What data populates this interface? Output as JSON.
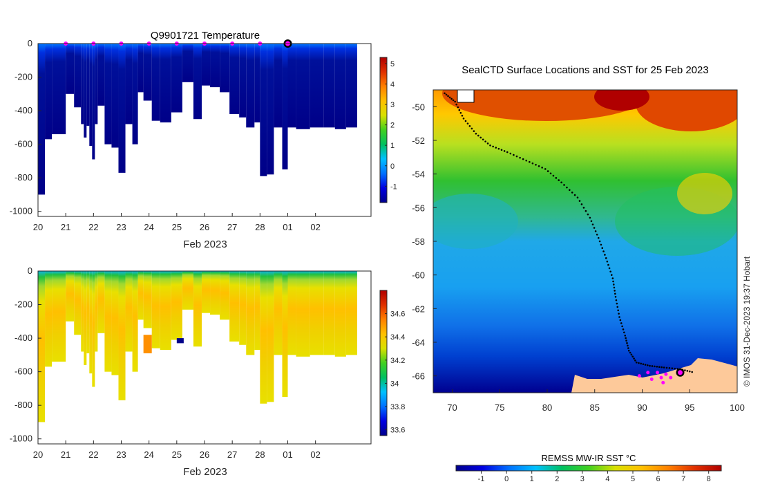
{
  "chart_data": [
    {
      "type": "heatmap",
      "title": "Q9901721  Temperature",
      "xlabel": "Feb 2023",
      "ylabel": "",
      "x_ticks": [
        "20",
        "21",
        "22",
        "23",
        "24",
        "25",
        "26",
        "27",
        "28",
        "01",
        "02"
      ],
      "y_ticks": [
        "0",
        "-200",
        "-400",
        "-600",
        "-800",
        "-1000"
      ],
      "xlim": [
        20,
        32
      ],
      "ylim": [
        -1030,
        0
      ],
      "colorbar": {
        "ticks": [
          "5",
          "4",
          "3",
          "2",
          "1",
          "0",
          "-1"
        ],
        "range": [
          -1.8,
          5.3
        ],
        "colors": [
          "#00008b",
          "#0000e0",
          "#0070ff",
          "#00c0ff",
          "#00c060",
          "#40d020",
          "#d8e000",
          "#ffc000",
          "#ff8000",
          "#e03000",
          "#b00000"
        ]
      },
      "surface_markers_x": [
        21,
        22,
        23,
        24,
        25,
        26,
        27,
        28
      ],
      "current_marker_x": 29,
      "profiles": [
        {
          "x": 20.0,
          "w": 0.25,
          "depth": 900
        },
        {
          "x": 20.25,
          "w": 0.25,
          "depth": 570
        },
        {
          "x": 20.5,
          "w": 0.5,
          "depth": 540
        },
        {
          "x": 21.0,
          "w": 0.3,
          "depth": 300
        },
        {
          "x": 21.3,
          "w": 0.25,
          "depth": 380
        },
        {
          "x": 21.55,
          "w": 0.1,
          "depth": 480
        },
        {
          "x": 21.65,
          "w": 0.1,
          "depth": 560
        },
        {
          "x": 21.75,
          "w": 0.1,
          "depth": 490
        },
        {
          "x": 21.85,
          "w": 0.1,
          "depth": 610
        },
        {
          "x": 21.95,
          "w": 0.1,
          "depth": 690
        },
        {
          "x": 22.05,
          "w": 0.1,
          "depth": 480
        },
        {
          "x": 22.15,
          "w": 0.25,
          "depth": 370
        },
        {
          "x": 22.4,
          "w": 0.25,
          "depth": 600
        },
        {
          "x": 22.65,
          "w": 0.25,
          "depth": 620
        },
        {
          "x": 22.9,
          "w": 0.25,
          "depth": 770
        },
        {
          "x": 23.15,
          "w": 0.25,
          "depth": 480
        },
        {
          "x": 23.4,
          "w": 0.2,
          "depth": 600
        },
        {
          "x": 23.6,
          "w": 0.2,
          "depth": 290
        },
        {
          "x": 23.8,
          "w": 0.3,
          "depth": 340
        },
        {
          "x": 24.1,
          "w": 0.3,
          "depth": 460
        },
        {
          "x": 24.4,
          "w": 0.4,
          "depth": 470
        },
        {
          "x": 24.8,
          "w": 0.4,
          "depth": 410
        },
        {
          "x": 25.2,
          "w": 0.4,
          "depth": 230
        },
        {
          "x": 25.6,
          "w": 0.3,
          "depth": 450
        },
        {
          "x": 25.9,
          "w": 0.3,
          "depth": 250
        },
        {
          "x": 26.2,
          "w": 0.35,
          "depth": 260
        },
        {
          "x": 26.55,
          "w": 0.35,
          "depth": 290
        },
        {
          "x": 26.9,
          "w": 0.35,
          "depth": 420
        },
        {
          "x": 27.25,
          "w": 0.25,
          "depth": 440
        },
        {
          "x": 27.5,
          "w": 0.3,
          "depth": 500
        },
        {
          "x": 27.8,
          "w": 0.2,
          "depth": 470
        },
        {
          "x": 28.0,
          "w": 0.25,
          "depth": 790
        },
        {
          "x": 28.25,
          "w": 0.25,
          "depth": 780
        },
        {
          "x": 28.5,
          "w": 0.3,
          "depth": 500
        },
        {
          "x": 28.8,
          "w": 0.2,
          "depth": 750
        },
        {
          "x": 29.0,
          "w": 0.3,
          "depth": 500
        },
        {
          "x": 29.3,
          "w": 0.5,
          "depth": 510
        },
        {
          "x": 29.8,
          "w": 0.5,
          "depth": 500
        },
        {
          "x": 30.3,
          "w": 0.4,
          "depth": 500
        },
        {
          "x": 30.7,
          "w": 0.4,
          "depth": 510
        },
        {
          "x": 31.1,
          "w": 0.4,
          "depth": 500
        }
      ]
    },
    {
      "type": "heatmap",
      "title": "",
      "xlabel": "Feb 2023",
      "ylabel": "",
      "x_ticks": [
        "20",
        "21",
        "22",
        "23",
        "24",
        "25",
        "26",
        "27",
        "28",
        "01",
        "02"
      ],
      "y_ticks": [
        "0",
        "-200",
        "-400",
        "-600",
        "-800",
        "-1000"
      ],
      "xlim": [
        20,
        32
      ],
      "ylim": [
        -1030,
        0
      ],
      "colorbar": {
        "ticks": [
          "34.6",
          "34.4",
          "34.2",
          "34",
          "33.8",
          "33.6"
        ],
        "range": [
          33.55,
          34.8
        ],
        "colors": [
          "#00008b",
          "#0000e0",
          "#0070ff",
          "#00c0ff",
          "#00c060",
          "#40d020",
          "#d8e000",
          "#ffc000",
          "#ff8000",
          "#e03000",
          "#b00000"
        ]
      }
    },
    {
      "type": "heatmap",
      "title": "SealCTD Surface Locations and SST for 25 Feb 2023",
      "xlabel": "",
      "ylabel": "",
      "x_ticks": [
        "70",
        "75",
        "80",
        "85",
        "90",
        "95",
        "100"
      ],
      "y_ticks": [
        "-50",
        "-52",
        "-54",
        "-56",
        "-58",
        "-60",
        "-62",
        "-64",
        "-66"
      ],
      "xlim": [
        68,
        100
      ],
      "ylim": [
        -67,
        -49
      ],
      "colorbar": {
        "title": "REMSS MW-IR SST °C",
        "ticks": [
          "-1",
          "0",
          "1",
          "2",
          "3",
          "4",
          "5",
          "6",
          "7",
          "8"
        ],
        "range": [
          -2,
          8.5
        ],
        "colors": [
          "#00008b",
          "#0000e0",
          "#0070ff",
          "#00c0ff",
          "#00c060",
          "#40d020",
          "#d8e000",
          "#ffc000",
          "#ff8000",
          "#e03000",
          "#b00000"
        ]
      },
      "track": [
        [
          69.2,
          -49.2
        ],
        [
          70.3,
          -49.7
        ],
        [
          71.2,
          -50.7
        ],
        [
          72.5,
          -51.6
        ],
        [
          74.0,
          -52.3
        ],
        [
          75.8,
          -52.7
        ],
        [
          77.8,
          -53.2
        ],
        [
          79.8,
          -53.7
        ],
        [
          81.5,
          -54.5
        ],
        [
          83.2,
          -55.4
        ],
        [
          84.5,
          -56.6
        ],
        [
          85.4,
          -57.8
        ],
        [
          86.2,
          -59.0
        ],
        [
          86.9,
          -60.2
        ],
        [
          87.2,
          -61.3
        ],
        [
          87.6,
          -62.5
        ],
        [
          88.2,
          -63.6
        ],
        [
          88.6,
          -64.5
        ],
        [
          89.4,
          -65.2
        ],
        [
          90.8,
          -65.4
        ],
        [
          92.3,
          -65.5
        ],
        [
          94.0,
          -65.6
        ],
        [
          95.5,
          -65.8
        ]
      ],
      "track_markers": [
        [
          90.6,
          -65.8
        ],
        [
          91.6,
          -65.8
        ],
        [
          92.5,
          -65.9
        ],
        [
          89.7,
          -66.0
        ],
        [
          91.0,
          -66.2
        ],
        [
          92.0,
          -66.1
        ],
        [
          93.0,
          -66.1
        ],
        [
          92.2,
          -66.4
        ]
      ],
      "current_location": [
        94.0,
        -65.8
      ]
    }
  ],
  "credit": "© IMOS 31-Dec-2023 19:37 Hobart"
}
